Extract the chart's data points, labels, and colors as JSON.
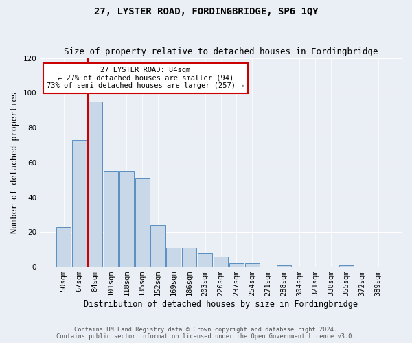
{
  "title": "27, LYSTER ROAD, FORDINGBRIDGE, SP6 1QY",
  "subtitle": "Size of property relative to detached houses in Fordingbridge",
  "xlabel": "Distribution of detached houses by size in Fordingbridge",
  "ylabel": "Number of detached properties",
  "footnote1": "Contains HM Land Registry data © Crown copyright and database right 2024.",
  "footnote2": "Contains public sector information licensed under the Open Government Licence v3.0.",
  "annotation_title": "27 LYSTER ROAD: 84sqm",
  "annotation_line1": "← 27% of detached houses are smaller (94)",
  "annotation_line2": "73% of semi-detached houses are larger (257) →",
  "bar_color": "#c8d8e8",
  "bar_edge_color": "#5a8fc0",
  "highlight_color": "#cc0000",
  "categories": [
    "50sqm",
    "67sqm",
    "84sqm",
    "101sqm",
    "118sqm",
    "135sqm",
    "152sqm",
    "169sqm",
    "186sqm",
    "203sqm",
    "220sqm",
    "237sqm",
    "254sqm",
    "271sqm",
    "288sqm",
    "304sqm",
    "321sqm",
    "338sqm",
    "355sqm",
    "372sqm",
    "389sqm"
  ],
  "values": [
    23,
    73,
    95,
    55,
    55,
    51,
    24,
    11,
    11,
    8,
    6,
    2,
    2,
    0,
    1,
    0,
    0,
    0,
    1,
    0,
    0
  ],
  "ylim": [
    0,
    120
  ],
  "yticks": [
    0,
    20,
    40,
    60,
    80,
    100,
    120
  ],
  "background_color": "#eaeff5",
  "grid_color": "#ffffff",
  "title_fontsize": 10,
  "subtitle_fontsize": 9,
  "axis_label_fontsize": 8.5,
  "tick_fontsize": 7.5,
  "annotation_box_color": "#ffffff",
  "annotation_border_color": "#cc0000"
}
